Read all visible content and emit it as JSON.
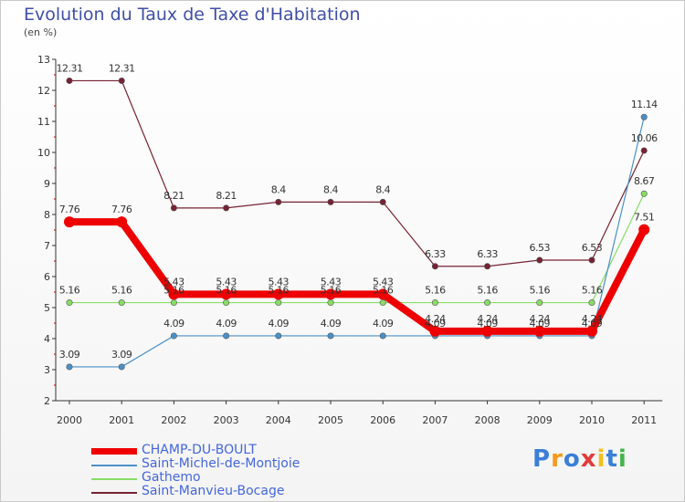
{
  "chart_data": {
    "type": "line",
    "title": "Evolution du Taux de Taxe d'Habitation",
    "subtitle": "(en %)",
    "x": [
      "2000",
      "2001",
      "2002",
      "2003",
      "2004",
      "2005",
      "2006",
      "2007",
      "2008",
      "2009",
      "2010",
      "2011"
    ],
    "ylim": [
      2,
      13
    ],
    "yticks": [
      2,
      3,
      4,
      5,
      6,
      7,
      8,
      9,
      10,
      11,
      12,
      13
    ],
    "grid": false,
    "legend_position": "bottom-left",
    "series": [
      {
        "name": "CHAMP-DU-BOULT",
        "color": "#ee0000",
        "values": [
          7.76,
          7.76,
          5.43,
          5.43,
          5.43,
          5.43,
          5.43,
          4.24,
          4.24,
          4.24,
          4.24,
          7.51
        ],
        "labels": [
          "7.76",
          "7.76",
          "5.43",
          "5.43",
          "5.43",
          "5.43",
          "5.43",
          "4.24",
          "4.24",
          "4.24",
          "4.24",
          "7.51"
        ]
      },
      {
        "name": "Saint-Michel-de-Montjoie",
        "color": "#4a90c8",
        "values": [
          3.09,
          3.09,
          4.09,
          4.09,
          4.09,
          4.09,
          4.09,
          4.09,
          4.09,
          4.09,
          4.09,
          11.14
        ],
        "labels": [
          "3.09",
          "3.09",
          "4.09",
          "4.09",
          "4.09",
          "4.09",
          "4.09",
          "4.09",
          "4.09",
          "4.09",
          "4.09",
          "11.14"
        ]
      },
      {
        "name": "Gathemo",
        "color": "#88dd66",
        "values": [
          5.16,
          5.16,
          5.16,
          5.16,
          5.16,
          5.16,
          5.16,
          5.16,
          5.16,
          5.16,
          5.16,
          8.67
        ],
        "labels": [
          "5.16",
          "5.16",
          "5.16",
          "5.16",
          "5.16",
          "5.16",
          "5.16",
          "5.16",
          "5.16",
          "5.16",
          "5.16",
          "8.67"
        ]
      },
      {
        "name": "Saint-Manvieu-Bocage",
        "color": "#772233",
        "values": [
          12.31,
          12.31,
          8.21,
          8.21,
          8.4,
          8.4,
          8.4,
          6.33,
          6.33,
          6.53,
          6.53,
          10.06
        ],
        "labels": [
          "12.31",
          "12.31",
          "8.21",
          "8.21",
          "8.4",
          "8.4",
          "8.4",
          "6.33",
          "6.33",
          "6.53",
          "6.53",
          "10.06"
        ]
      }
    ]
  },
  "logo": {
    "letters": [
      "P",
      "r",
      "o",
      "x",
      "i",
      "t",
      "i"
    ],
    "colors": [
      "#3b7fd8",
      "#f39a1c",
      "#3b7fd8",
      "#e33b3b",
      "#f3c11c",
      "#3b7fd8",
      "#44b54a"
    ]
  }
}
